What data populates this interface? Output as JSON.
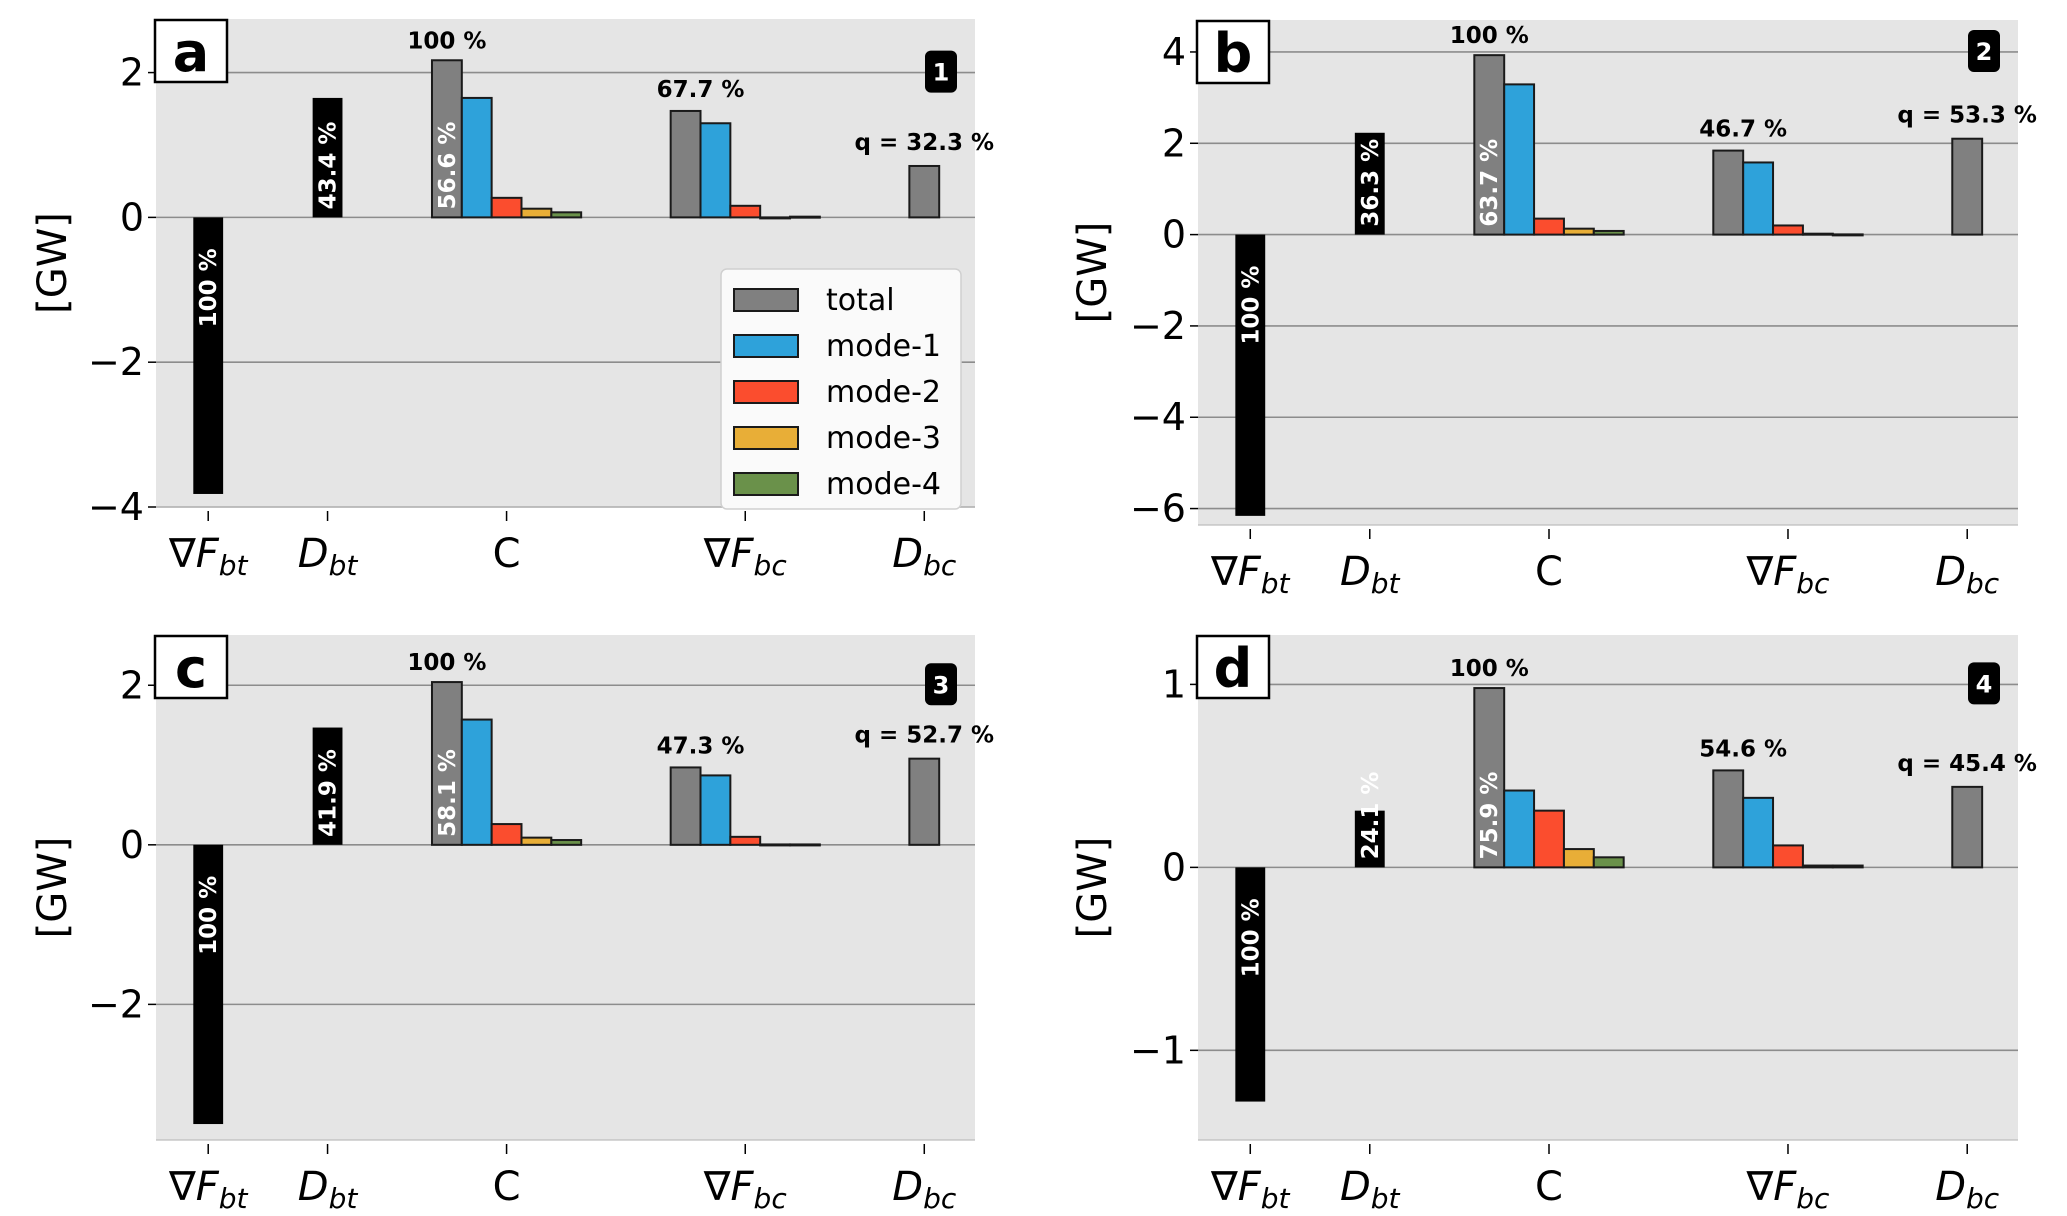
{
  "figure": {
    "ylabel": "[GW]",
    "categories": [
      {
        "id": "gradFbt",
        "main": "∇F",
        "sub": "bt"
      },
      {
        "id": "Dbt",
        "main": "D",
        "sub": "bt"
      },
      {
        "id": "C",
        "main": "C",
        "sub": ""
      },
      {
        "id": "gradFbc",
        "main": "∇F",
        "sub": "bc"
      },
      {
        "id": "Dbc",
        "main": "D",
        "sub": "bc"
      }
    ],
    "legend": {
      "placement": "panel-a lower-right",
      "entries": [
        {
          "label": "total",
          "color": "#808080"
        },
        {
          "label": "mode-1",
          "color": "#2ea2da"
        },
        {
          "label": "mode-2",
          "color": "#fb4d2e"
        },
        {
          "label": "mode-3",
          "color": "#e8ae37"
        },
        {
          "label": "mode-4",
          "color": "#6a914a"
        }
      ]
    },
    "colors": {
      "axes_bg": "#e5e5e5",
      "grid": "#8c8c8c",
      "black_bar": "#000000",
      "total": "#808080",
      "mode1": "#2ea2da",
      "mode2": "#fb4d2e",
      "mode3": "#e8ae37",
      "mode4": "#6a914a"
    }
  },
  "chart_data": [
    {
      "type": "bar",
      "panel": "a",
      "badge": "1",
      "ylabel": "[GW]",
      "ylim": [
        -4.0,
        2.74
      ],
      "yticks": [
        -4,
        -2,
        0,
        2
      ],
      "grid": true,
      "categories": [
        "∇F_bt",
        "D_bt",
        "C",
        "∇F_bc",
        "D_bc"
      ],
      "values": {
        "gradFbt": -3.82,
        "Dbt": 1.65,
        "C": {
          "total": 2.17,
          "mode-1": 1.65,
          "mode-2": 0.27,
          "mode-3": 0.12,
          "mode-4": 0.07
        },
        "gradFbc": {
          "total": 1.47,
          "mode-1": 1.3,
          "mode-2": 0.16,
          "mode-3": -0.01,
          "mode-4": 0.01
        },
        "Dbc": 0.71
      },
      "labels": {
        "gradFbt": "100 %",
        "Dbt": "43.4 %",
        "C_top": "100 %",
        "C_in": "56.6 %",
        "gradFbc": "67.7 %",
        "Dbc": "q = 32.3 %"
      }
    },
    {
      "type": "bar",
      "panel": "b",
      "badge": "2",
      "ylabel": "[GW]",
      "ylim": [
        -6.36,
        4.7
      ],
      "yticks": [
        -6,
        -4,
        -2,
        0,
        2,
        4
      ],
      "grid": true,
      "categories": [
        "∇F_bt",
        "D_bt",
        "C",
        "∇F_bc",
        "D_bc"
      ],
      "values": {
        "gradFbt": -6.16,
        "Dbt": 2.23,
        "C": {
          "total": 3.93,
          "mode-1": 3.29,
          "mode-2": 0.35,
          "mode-3": 0.13,
          "mode-4": 0.08
        },
        "gradFbc": {
          "total": 1.84,
          "mode-1": 1.58,
          "mode-2": 0.2,
          "mode-3": 0.02,
          "mode-4": 0.005
        },
        "Dbc": 2.1
      },
      "labels": {
        "gradFbt": "100 %",
        "Dbt": "36.3 %",
        "C_top": "100 %",
        "C_in": "63.7 %",
        "gradFbc": "46.7 %",
        "Dbc": "q = 53.3 %"
      }
    },
    {
      "type": "bar",
      "panel": "c",
      "badge": "3",
      "ylabel": "[GW]",
      "ylim": [
        -3.7,
        2.63
      ],
      "yticks": [
        -2,
        0,
        2
      ],
      "grid": true,
      "categories": [
        "∇F_bt",
        "D_bt",
        "C",
        "∇F_bc",
        "D_bc"
      ],
      "values": {
        "gradFbt": -3.5,
        "Dbt": 1.47,
        "C": {
          "total": 2.04,
          "mode-1": 1.57,
          "mode-2": 0.26,
          "mode-3": 0.09,
          "mode-4": 0.06
        },
        "gradFbc": {
          "total": 0.97,
          "mode-1": 0.87,
          "mode-2": 0.1,
          "mode-3": 0.005,
          "mode-4": 0.005
        },
        "Dbc": 1.08
      },
      "labels": {
        "gradFbt": "100 %",
        "Dbt": "41.9 %",
        "C_top": "100 %",
        "C_in": "58.1 %",
        "gradFbc": "47.3 %",
        "Dbc": "q = 52.7 %"
      }
    },
    {
      "type": "bar",
      "panel": "d",
      "badge": "4",
      "ylabel": "[GW]",
      "ylim": [
        -1.49,
        1.27
      ],
      "yticks": [
        -1,
        0,
        1
      ],
      "grid": true,
      "categories": [
        "∇F_bt",
        "D_bt",
        "C",
        "∇F_bc",
        "D_bc"
      ],
      "values": {
        "gradFbt": -1.28,
        "Dbt": 0.31,
        "C": {
          "total": 0.98,
          "mode-1": 0.42,
          "mode-2": 0.31,
          "mode-3": 0.1,
          "mode-4": 0.055
        },
        "gradFbc": {
          "total": 0.53,
          "mode-1": 0.38,
          "mode-2": 0.12,
          "mode-3": 0.01,
          "mode-4": 0.01
        },
        "Dbc": 0.44
      },
      "labels": {
        "gradFbt": "100 %",
        "Dbt": "24.1 %",
        "C_top": "100 %",
        "C_in": "75.9 %",
        "gradFbc": "54.6 %",
        "Dbc": "q = 45.4 %"
      }
    }
  ]
}
